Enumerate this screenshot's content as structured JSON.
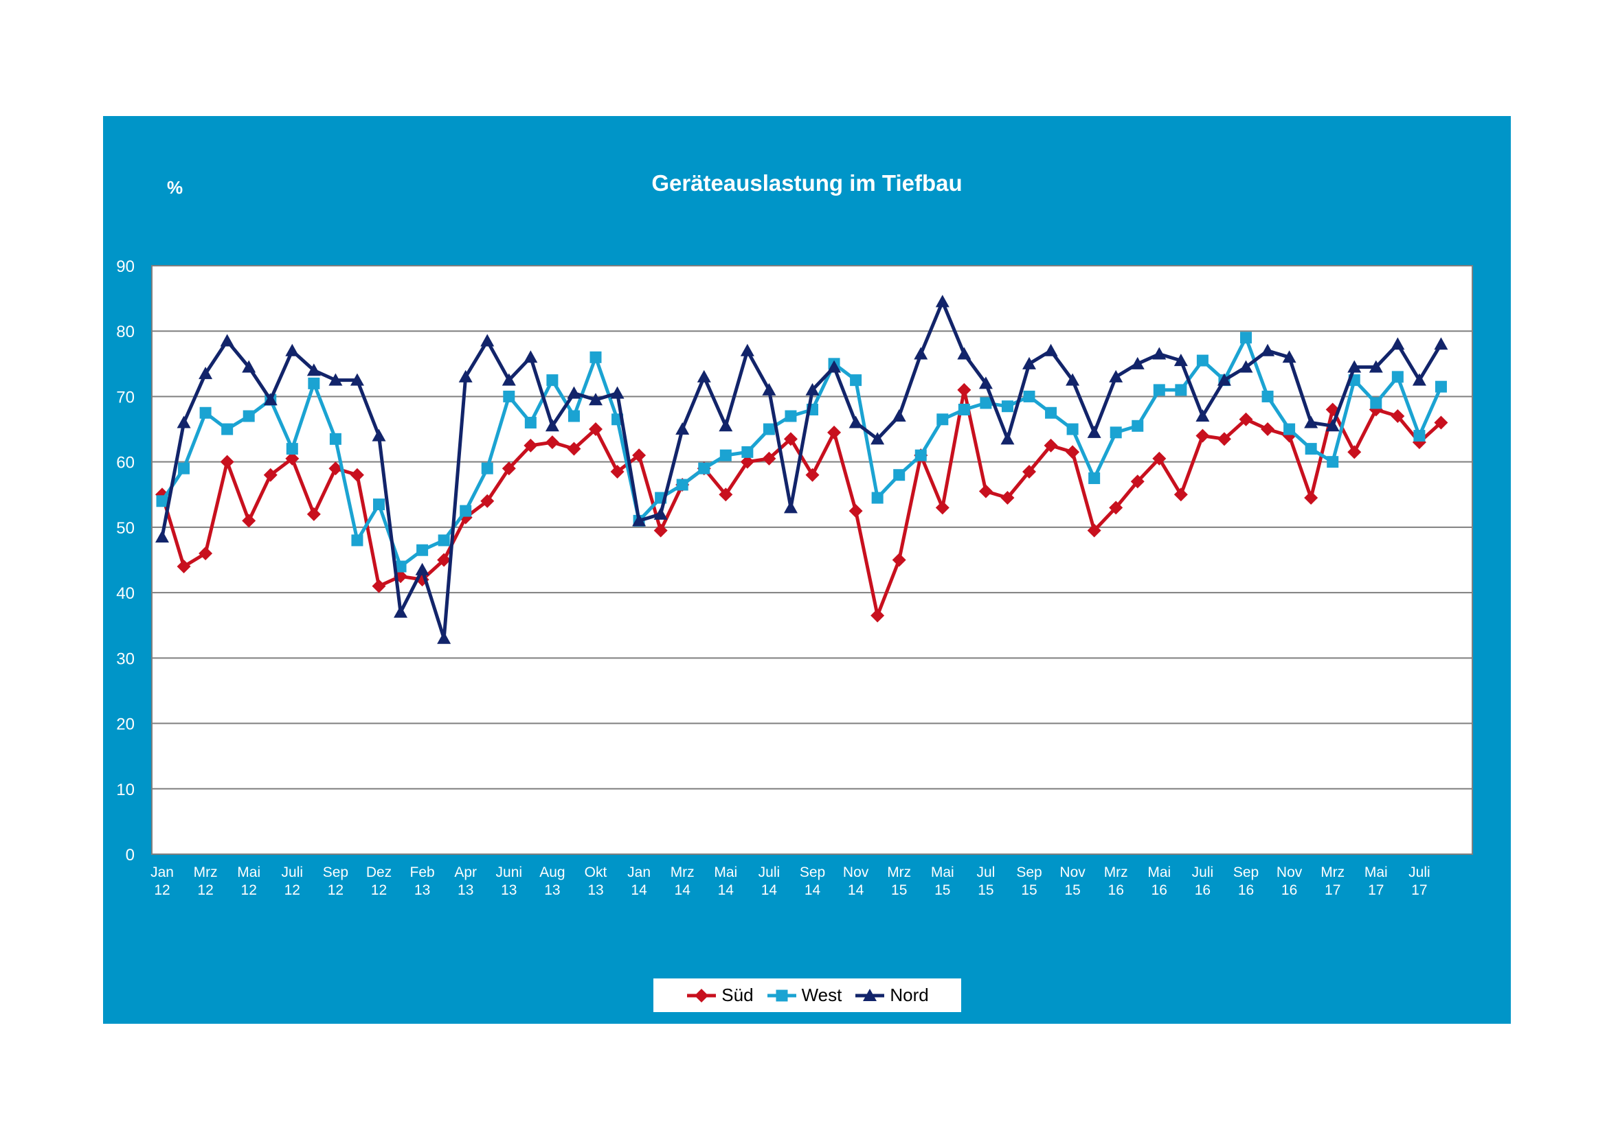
{
  "chart_data": {
    "type": "line",
    "title": "Geräteauslastung im Tiefbau",
    "ylabel": "%",
    "xlabel": "",
    "ylim": [
      0,
      90
    ],
    "yticks": [
      0,
      10,
      20,
      30,
      40,
      50,
      60,
      70,
      80,
      90
    ],
    "grid": true,
    "legend_position": "bottom",
    "x_tick_labels": [
      [
        "Jan",
        "12"
      ],
      [
        "Mrz",
        "12"
      ],
      [
        "Mai",
        "12"
      ],
      [
        "Juli",
        "12"
      ],
      [
        "Sep",
        "12"
      ],
      [
        "Dez",
        "12"
      ],
      [
        "Feb",
        "13"
      ],
      [
        "Apr",
        "13"
      ],
      [
        "Juni",
        "13"
      ],
      [
        "Aug",
        "13"
      ],
      [
        "Okt",
        "13"
      ],
      [
        "Jan",
        "14"
      ],
      [
        "Mrz",
        "14"
      ],
      [
        "Mai",
        "14"
      ],
      [
        "Juli",
        "14"
      ],
      [
        "Sep",
        "14"
      ],
      [
        "Nov",
        "14"
      ],
      [
        "Mrz",
        "15"
      ],
      [
        "Mai",
        "15"
      ],
      [
        "Jul",
        "15"
      ],
      [
        "Sep",
        "15"
      ],
      [
        "Nov",
        "15"
      ],
      [
        "Mrz",
        "16"
      ],
      [
        "Mai",
        "16"
      ],
      [
        "Juli",
        "16"
      ],
      [
        "Sep",
        "16"
      ],
      [
        "Nov",
        "16"
      ],
      [
        "Mrz",
        "17"
      ],
      [
        "Mai",
        "17"
      ],
      [
        "Juli",
        "17"
      ]
    ],
    "series": [
      {
        "name": "Süd",
        "color": "#c8101e",
        "marker": "diamond",
        "values": [
          55,
          44,
          46,
          60,
          51,
          58,
          60.5,
          52,
          59,
          58,
          41,
          42.5,
          42,
          45,
          51.5,
          54,
          59,
          62.5,
          63,
          62,
          65,
          58.5,
          61,
          49.5,
          56.5,
          59,
          55,
          60,
          60.5,
          63.5,
          58,
          64.5,
          52.5,
          36.5,
          45,
          61,
          53,
          71,
          55.5,
          54.5,
          58.5,
          62.5,
          61.5,
          49.5,
          53,
          57,
          60.5,
          55,
          64,
          63.5,
          66.5,
          65,
          64,
          54.5,
          68,
          61.5,
          68,
          67,
          63,
          66
        ]
      },
      {
        "name": "West",
        "color": "#1ba3d2",
        "marker": "square",
        "values": [
          54,
          59,
          67.5,
          65,
          67,
          69.5,
          62,
          72,
          63.5,
          48,
          53.5,
          44,
          46.5,
          48,
          52.5,
          59,
          70,
          66,
          72.5,
          67,
          76,
          66.5,
          51,
          54.5,
          56.5,
          59,
          61,
          61.5,
          65,
          67,
          68,
          75,
          72.5,
          54.5,
          58,
          61,
          66.5,
          68,
          69,
          68.5,
          70,
          67.5,
          65,
          57.5,
          64.5,
          65.5,
          71,
          71,
          75.5,
          72.5,
          79,
          70,
          65,
          62,
          60,
          72.5,
          69,
          73,
          64,
          71.5
        ]
      },
      {
        "name": "Nord",
        "color": "#12246a",
        "marker": "triangle",
        "values": [
          48.5,
          66,
          73.5,
          78.5,
          74.5,
          69.5,
          77,
          74,
          72.5,
          72.5,
          64,
          37,
          43.5,
          33,
          73,
          78.5,
          72.5,
          76,
          65.5,
          70.5,
          69.5,
          70.5,
          51,
          52,
          65,
          73,
          65.5,
          77,
          71,
          53,
          71,
          74.5,
          66,
          63.5,
          67,
          76.5,
          84.5,
          76.5,
          72,
          63.5,
          75,
          77,
          72.5,
          64.5,
          73,
          75,
          76.5,
          75.5,
          67,
          72.5,
          74.5,
          77,
          76,
          66,
          65.5,
          74.5,
          74.5,
          78,
          72.5,
          78
        ]
      }
    ]
  }
}
